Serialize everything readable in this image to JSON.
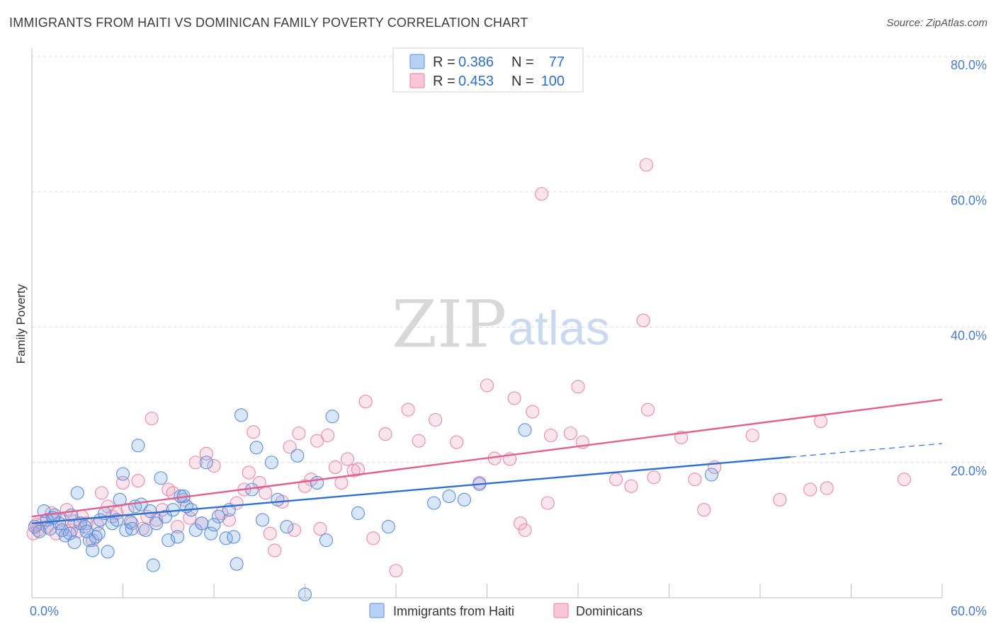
{
  "title": "IMMIGRANTS FROM HAITI VS DOMINICAN FAMILY POVERTY CORRELATION CHART",
  "source": "Source: ZipAtlas.com",
  "watermark": {
    "zip": "ZIP",
    "atlas": "atlas"
  },
  "legend": {
    "r_label": "R =",
    "n_label": "N =",
    "rows": [
      {
        "r": "0.386",
        "n": "77",
        "color": "#6fa0e0",
        "fill": "#b7d0f3"
      },
      {
        "r": "0.453",
        "n": "100",
        "color": "#ec8fae",
        "fill": "#f8c6d6"
      }
    ]
  },
  "chart_data": {
    "type": "scatter",
    "title": "IMMIGRANTS FROM HAITI VS DOMINICAN FAMILY POVERTY CORRELATION CHART",
    "xlabel": "",
    "ylabel": "Family Poverty",
    "xlim": [
      0,
      60
    ],
    "ylim": [
      0,
      80
    ],
    "x_tick_labels": [
      "0.0%",
      "60.0%"
    ],
    "y_ticks": [
      20,
      40,
      60,
      80
    ],
    "y_tick_labels": [
      "20.0%",
      "40.0%",
      "60.0%",
      "80.0%"
    ],
    "series": [
      {
        "name": "Immigrants from Haiti",
        "color": "#5b8fd9",
        "fill": "rgba(120,165,230,0.28)",
        "trend": {
          "x0": 0,
          "y0": 11.0,
          "x1": 50,
          "y1": 20.8,
          "dash_to_x": 60,
          "dash_to_y": 22.8,
          "color": "#2f6fd0"
        },
        "points": [
          [
            0.2,
            10.5
          ],
          [
            0.5,
            9.8
          ],
          [
            0.8,
            12.8
          ],
          [
            1.0,
            11.5
          ],
          [
            1.2,
            10.2
          ],
          [
            1.5,
            12.2
          ],
          [
            1.8,
            11.0
          ],
          [
            2.0,
            10.0
          ],
          [
            2.2,
            9.2
          ],
          [
            2.5,
            9.5
          ],
          [
            2.8,
            8.2
          ],
          [
            3.0,
            15.5
          ],
          [
            3.2,
            11.0
          ],
          [
            3.5,
            10.5
          ],
          [
            3.8,
            8.5
          ],
          [
            4.0,
            7.0
          ],
          [
            4.2,
            9.0
          ],
          [
            4.5,
            11.5
          ],
          [
            4.8,
            12.5
          ],
          [
            5.0,
            6.8
          ],
          [
            5.3,
            11.0
          ],
          [
            5.6,
            11.5
          ],
          [
            5.8,
            14.5
          ],
          [
            6.0,
            18.3
          ],
          [
            6.2,
            10.0
          ],
          [
            6.5,
            11.2
          ],
          [
            6.8,
            13.5
          ],
          [
            7.0,
            22.5
          ],
          [
            7.2,
            13.8
          ],
          [
            7.5,
            10.0
          ],
          [
            7.8,
            12.8
          ],
          [
            8.0,
            4.8
          ],
          [
            8.2,
            11.0
          ],
          [
            8.5,
            17.7
          ],
          [
            8.8,
            12.0
          ],
          [
            9.0,
            8.5
          ],
          [
            9.3,
            13.0
          ],
          [
            9.6,
            9.0
          ],
          [
            9.8,
            15.0
          ],
          [
            10.2,
            13.5
          ],
          [
            10.5,
            13.0
          ],
          [
            10.8,
            10.0
          ],
          [
            11.2,
            11.0
          ],
          [
            11.5,
            20.0
          ],
          [
            11.8,
            9.5
          ],
          [
            12.3,
            12.0
          ],
          [
            12.8,
            8.8
          ],
          [
            13.0,
            13.0
          ],
          [
            13.3,
            9.0
          ],
          [
            13.5,
            5.0
          ],
          [
            13.8,
            27.0
          ],
          [
            14.5,
            16.0
          ],
          [
            14.8,
            22.2
          ],
          [
            15.2,
            11.5
          ],
          [
            15.8,
            20.0
          ],
          [
            16.2,
            14.5
          ],
          [
            16.8,
            10.5
          ],
          [
            17.5,
            21.0
          ],
          [
            18.0,
            0.5
          ],
          [
            18.8,
            17.0
          ],
          [
            19.4,
            8.5
          ],
          [
            19.8,
            26.8
          ],
          [
            21.5,
            12.5
          ],
          [
            23.5,
            10.5
          ],
          [
            26.5,
            14.0
          ],
          [
            27.5,
            15.0
          ],
          [
            28.5,
            14.5
          ],
          [
            29.5,
            16.8
          ],
          [
            32.5,
            24.8
          ],
          [
            44.8,
            18.2
          ],
          [
            1.4,
            11.8
          ],
          [
            2.6,
            12.2
          ],
          [
            3.6,
            9.8
          ],
          [
            4.4,
            9.5
          ],
          [
            6.6,
            10.2
          ],
          [
            10.0,
            15.0
          ],
          [
            12.0,
            10.8
          ]
        ]
      },
      {
        "name": "Dominicans",
        "color": "#e889a8",
        "fill": "rgba(240,160,190,0.28)",
        "trend": {
          "x0": 0,
          "y0": 12.0,
          "x1": 60,
          "y1": 29.3,
          "color": "#e2608d"
        },
        "points": [
          [
            0.1,
            9.5
          ],
          [
            0.4,
            10.0
          ],
          [
            0.7,
            11.0
          ],
          [
            1.0,
            10.5
          ],
          [
            1.3,
            12.5
          ],
          [
            1.6,
            9.5
          ],
          [
            2.0,
            11.5
          ],
          [
            2.3,
            13.0
          ],
          [
            2.6,
            10.0
          ],
          [
            3.0,
            9.8
          ],
          [
            3.3,
            12.0
          ],
          [
            3.6,
            11.0
          ],
          [
            4.0,
            8.5
          ],
          [
            4.3,
            10.8
          ],
          [
            4.6,
            15.5
          ],
          [
            5.0,
            13.5
          ],
          [
            5.3,
            12.0
          ],
          [
            5.6,
            12.5
          ],
          [
            6.0,
            17.0
          ],
          [
            6.3,
            13.0
          ],
          [
            6.6,
            11.0
          ],
          [
            7.0,
            17.3
          ],
          [
            7.3,
            10.2
          ],
          [
            7.6,
            12.0
          ],
          [
            7.9,
            26.5
          ],
          [
            8.2,
            11.5
          ],
          [
            8.6,
            13.0
          ],
          [
            9.0,
            16.0
          ],
          [
            9.3,
            15.5
          ],
          [
            9.6,
            10.5
          ],
          [
            10.0,
            14.5
          ],
          [
            10.4,
            11.8
          ],
          [
            10.8,
            20.0
          ],
          [
            11.2,
            11.0
          ],
          [
            11.5,
            21.3
          ],
          [
            12.0,
            19.5
          ],
          [
            12.5,
            12.5
          ],
          [
            13.0,
            11.5
          ],
          [
            13.5,
            14.0
          ],
          [
            14.0,
            16.0
          ],
          [
            14.3,
            18.5
          ],
          [
            14.6,
            24.5
          ],
          [
            15.0,
            17.0
          ],
          [
            15.4,
            15.5
          ],
          [
            15.7,
            9.5
          ],
          [
            16.0,
            7.0
          ],
          [
            16.5,
            14.2
          ],
          [
            17.0,
            22.3
          ],
          [
            17.3,
            10.0
          ],
          [
            17.6,
            24.3
          ],
          [
            18.0,
            16.5
          ],
          [
            18.4,
            17.5
          ],
          [
            18.8,
            23.2
          ],
          [
            19.0,
            10.2
          ],
          [
            19.5,
            24.0
          ],
          [
            20.0,
            19.3
          ],
          [
            20.4,
            17.0
          ],
          [
            20.8,
            20.5
          ],
          [
            21.2,
            18.8
          ],
          [
            21.5,
            19.0
          ],
          [
            22.0,
            29.0
          ],
          [
            22.5,
            8.8
          ],
          [
            23.3,
            24.2
          ],
          [
            24.0,
            4.0
          ],
          [
            24.8,
            27.8
          ],
          [
            25.5,
            23.2
          ],
          [
            26.6,
            26.3
          ],
          [
            28.0,
            23.0
          ],
          [
            29.5,
            17.0
          ],
          [
            30.0,
            31.4
          ],
          [
            30.5,
            20.6
          ],
          [
            31.5,
            20.5
          ],
          [
            31.8,
            29.5
          ],
          [
            32.2,
            11.0
          ],
          [
            32.5,
            10.0
          ],
          [
            33.0,
            27.5
          ],
          [
            33.6,
            59.7
          ],
          [
            34.0,
            14.0
          ],
          [
            34.2,
            24.0
          ],
          [
            35.5,
            24.3
          ],
          [
            36.0,
            31.2
          ],
          [
            36.3,
            23.0
          ],
          [
            38.5,
            17.5
          ],
          [
            39.5,
            16.5
          ],
          [
            40.3,
            41.0
          ],
          [
            40.5,
            64.0
          ],
          [
            40.6,
            27.8
          ],
          [
            41.0,
            17.8
          ],
          [
            42.8,
            23.7
          ],
          [
            43.7,
            17.5
          ],
          [
            44.3,
            13.0
          ],
          [
            45.0,
            19.3
          ],
          [
            47.5,
            24.0
          ],
          [
            49.3,
            14.5
          ],
          [
            51.3,
            16.0
          ],
          [
            52.0,
            26.1
          ],
          [
            52.4,
            16.2
          ],
          [
            57.5,
            17.5
          ],
          [
            0.3,
            10.8
          ],
          [
            2.8,
            11.3
          ]
        ]
      }
    ]
  },
  "bottom_legend": [
    {
      "label": "Immigrants from Haiti",
      "color": "#6fa0e0",
      "fill": "#b7d0f3"
    },
    {
      "label": "Dominicans",
      "color": "#ec8fae",
      "fill": "#f8c6d6"
    }
  ]
}
